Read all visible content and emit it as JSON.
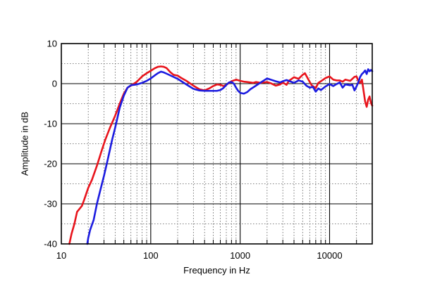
{
  "chart_data": {
    "type": "line",
    "title": "",
    "xlabel": "Frequency in Hz",
    "ylabel": "Amplitude in dB",
    "xscale": "log",
    "xlim": [
      10,
      30000
    ],
    "ylim": [
      -40,
      10
    ],
    "grid": true,
    "x_tick_labels": [
      {
        "value": 10,
        "label": "10"
      },
      {
        "value": 100,
        "label": "100"
      },
      {
        "value": 1000,
        "label": "1000"
      },
      {
        "value": 10000,
        "label": "10000"
      }
    ],
    "y_tick_labels": [
      {
        "value": 10,
        "label": "10"
      },
      {
        "value": 0,
        "label": "0"
      },
      {
        "value": -10,
        "label": "-10"
      },
      {
        "value": -20,
        "label": "-20"
      },
      {
        "value": -30,
        "label": "-30"
      },
      {
        "value": -40,
        "label": "-40"
      }
    ],
    "series": [
      {
        "color": "#e8141c",
        "points": [
          [
            12.3,
            -40
          ],
          [
            13,
            -37.5
          ],
          [
            14,
            -35
          ],
          [
            15,
            -32
          ],
          [
            17,
            -30.5
          ],
          [
            18,
            -29
          ],
          [
            20,
            -26
          ],
          [
            22,
            -24
          ],
          [
            25,
            -20.5
          ],
          [
            28,
            -17
          ],
          [
            31,
            -14
          ],
          [
            35,
            -11
          ],
          [
            40,
            -8
          ],
          [
            45,
            -5
          ],
          [
            50,
            -2.5
          ],
          [
            55,
            -1
          ],
          [
            60,
            -0.5
          ],
          [
            70,
            0.5
          ],
          [
            80,
            1.8
          ],
          [
            90,
            2.6
          ],
          [
            100,
            3.2
          ],
          [
            110,
            3.8
          ],
          [
            120,
            4.2
          ],
          [
            130,
            4.3
          ],
          [
            140,
            4.2
          ],
          [
            150,
            3.9
          ],
          [
            165,
            2.9
          ],
          [
            180,
            2.2
          ],
          [
            200,
            2.0
          ],
          [
            220,
            1.4
          ],
          [
            250,
            0.7
          ],
          [
            300,
            -0.5
          ],
          [
            350,
            -1.4
          ],
          [
            400,
            -1.7
          ],
          [
            450,
            -1.2
          ],
          [
            500,
            -0.6
          ],
          [
            550,
            -0.2
          ],
          [
            600,
            -0.3
          ],
          [
            650,
            -0.6
          ],
          [
            700,
            -0.3
          ],
          [
            800,
            0.6
          ],
          [
            900,
            1.0
          ],
          [
            1000,
            0.7
          ],
          [
            1100,
            0.5
          ],
          [
            1200,
            0.4
          ],
          [
            1300,
            0.3
          ],
          [
            1400,
            0.2
          ],
          [
            1500,
            0.4
          ],
          [
            1700,
            0.2
          ],
          [
            2000,
            0.4
          ],
          [
            2200,
            0.1
          ],
          [
            2500,
            -0.5
          ],
          [
            2800,
            -0.2
          ],
          [
            3000,
            0.3
          ],
          [
            3300,
            -0.3
          ],
          [
            3500,
            0.7
          ],
          [
            4000,
            1.6
          ],
          [
            4500,
            1.2
          ],
          [
            5000,
            2.2
          ],
          [
            5300,
            2.6
          ],
          [
            5800,
            1.0
          ],
          [
            6300,
            -0.4
          ],
          [
            7000,
            -1.1
          ],
          [
            7500,
            0.2
          ],
          [
            8000,
            0.6
          ],
          [
            9000,
            1.4
          ],
          [
            10000,
            1.8
          ],
          [
            11000,
            1.0
          ],
          [
            12000,
            0.8
          ],
          [
            13000,
            0.8
          ],
          [
            14000,
            0.5
          ],
          [
            15000,
            1.0
          ],
          [
            17000,
            0.7
          ],
          [
            19000,
            1.7
          ],
          [
            20000,
            1.8
          ],
          [
            21000,
            0.6
          ],
          [
            22000,
            0.2
          ],
          [
            23000,
            1.0
          ],
          [
            24000,
            -1.8
          ],
          [
            25000,
            -4.5
          ],
          [
            26000,
            -5.8
          ],
          [
            27000,
            -4.0
          ],
          [
            28000,
            -3.2
          ],
          [
            29000,
            -4.8
          ],
          [
            30000,
            -5.5
          ]
        ]
      },
      {
        "color": "#1c1ce0",
        "points": [
          [
            19.5,
            -40
          ],
          [
            20,
            -38.5
          ],
          [
            21,
            -36.5
          ],
          [
            23,
            -34
          ],
          [
            25,
            -30
          ],
          [
            27,
            -27
          ],
          [
            30,
            -23
          ],
          [
            33,
            -19
          ],
          [
            37,
            -14
          ],
          [
            40,
            -11
          ],
          [
            45,
            -6
          ],
          [
            50,
            -3
          ],
          [
            55,
            -1
          ],
          [
            60,
            -0.4
          ],
          [
            70,
            -0.2
          ],
          [
            80,
            0.2
          ],
          [
            90,
            0.7
          ],
          [
            100,
            1.3
          ],
          [
            110,
            2.0
          ],
          [
            120,
            2.6
          ],
          [
            130,
            3.0
          ],
          [
            140,
            2.8
          ],
          [
            150,
            2.5
          ],
          [
            175,
            1.8
          ],
          [
            200,
            1.2
          ],
          [
            250,
            -0.2
          ],
          [
            300,
            -1.3
          ],
          [
            350,
            -1.7
          ],
          [
            400,
            -1.8
          ],
          [
            450,
            -1.8
          ],
          [
            500,
            -1.8
          ],
          [
            550,
            -1.8
          ],
          [
            600,
            -1.6
          ],
          [
            650,
            -1.1
          ],
          [
            700,
            -0.3
          ],
          [
            750,
            0.3
          ],
          [
            800,
            0.4
          ],
          [
            850,
            0.0
          ],
          [
            900,
            -1.0
          ],
          [
            950,
            -1.8
          ],
          [
            1000,
            -2.3
          ],
          [
            1100,
            -2.5
          ],
          [
            1200,
            -2.1
          ],
          [
            1300,
            -1.4
          ],
          [
            1500,
            -0.5
          ],
          [
            1700,
            0.3
          ],
          [
            2000,
            1.3
          ],
          [
            2200,
            1.0
          ],
          [
            2500,
            0.6
          ],
          [
            2800,
            0.3
          ],
          [
            3000,
            0.6
          ],
          [
            3300,
            0.9
          ],
          [
            3500,
            0.7
          ],
          [
            4000,
            0.2
          ],
          [
            4500,
            0.8
          ],
          [
            5000,
            0.5
          ],
          [
            5500,
            -0.5
          ],
          [
            6000,
            -1.0
          ],
          [
            6500,
            -0.8
          ],
          [
            7000,
            -2.0
          ],
          [
            7500,
            -1.2
          ],
          [
            8000,
            -1.6
          ],
          [
            9000,
            -0.7
          ],
          [
            10000,
            -0.1
          ],
          [
            11000,
            -0.6
          ],
          [
            12000,
            -0.1
          ],
          [
            13000,
            0.3
          ],
          [
            14000,
            -1.0
          ],
          [
            15000,
            -0.2
          ],
          [
            17000,
            -0.4
          ],
          [
            18000,
            -0.3
          ],
          [
            19000,
            -1.7
          ],
          [
            20000,
            -0.7
          ],
          [
            21000,
            0.4
          ],
          [
            22000,
            1.7
          ],
          [
            23000,
            2.4
          ],
          [
            24000,
            2.8
          ],
          [
            25000,
            3.3
          ],
          [
            26000,
            2.4
          ],
          [
            27000,
            3.6
          ],
          [
            28000,
            3.1
          ],
          [
            29000,
            3.4
          ],
          [
            30000,
            3.1
          ]
        ]
      }
    ]
  }
}
